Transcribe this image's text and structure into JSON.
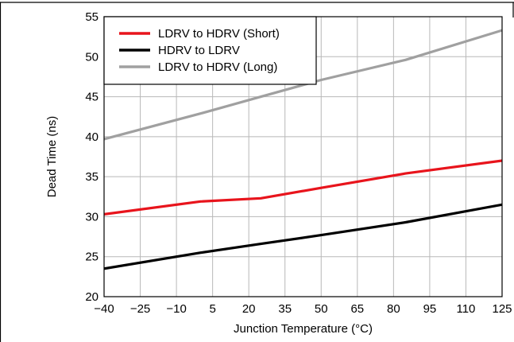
{
  "chart_data": {
    "type": "line",
    "title": "",
    "xlabel": "Junction Temperature (°C)",
    "ylabel": "Dead Time (ns)",
    "xlim": [
      -40,
      125
    ],
    "ylim": [
      20,
      55
    ],
    "x_ticks": [
      -40,
      -25,
      -10,
      5,
      20,
      35,
      50,
      65,
      80,
      95,
      110,
      125
    ],
    "x_tick_labels": [
      "−40",
      "−25",
      "−10",
      "5",
      "20",
      "35",
      "50",
      "65",
      "80",
      "95",
      "110",
      "125"
    ],
    "y_ticks": [
      20,
      25,
      30,
      35,
      40,
      45,
      50,
      55
    ],
    "y_tick_labels": [
      "20",
      "25",
      "30",
      "35",
      "40",
      "45",
      "50",
      "55"
    ],
    "grid": true,
    "legend_position": "top-left",
    "series": [
      {
        "name": "LDRV to HDRV (Short)",
        "color": "#e8141c",
        "x": [
          -40,
          0,
          25,
          50,
          85,
          125
        ],
        "y": [
          30.3,
          31.9,
          32.3,
          33.6,
          35.4,
          37.0
        ]
      },
      {
        "name": "HDRV to LDRV",
        "color": "#000000",
        "x": [
          -40,
          0,
          25,
          50,
          85,
          125
        ],
        "y": [
          23.5,
          25.5,
          26.6,
          27.7,
          29.3,
          31.5
        ]
      },
      {
        "name": "LDRV to HDRV (Long)",
        "color": "#a0a0a0",
        "x": [
          -40,
          0,
          25,
          50,
          85,
          125
        ],
        "y": [
          39.7,
          42.9,
          45.0,
          47.1,
          49.6,
          53.3
        ]
      }
    ]
  }
}
